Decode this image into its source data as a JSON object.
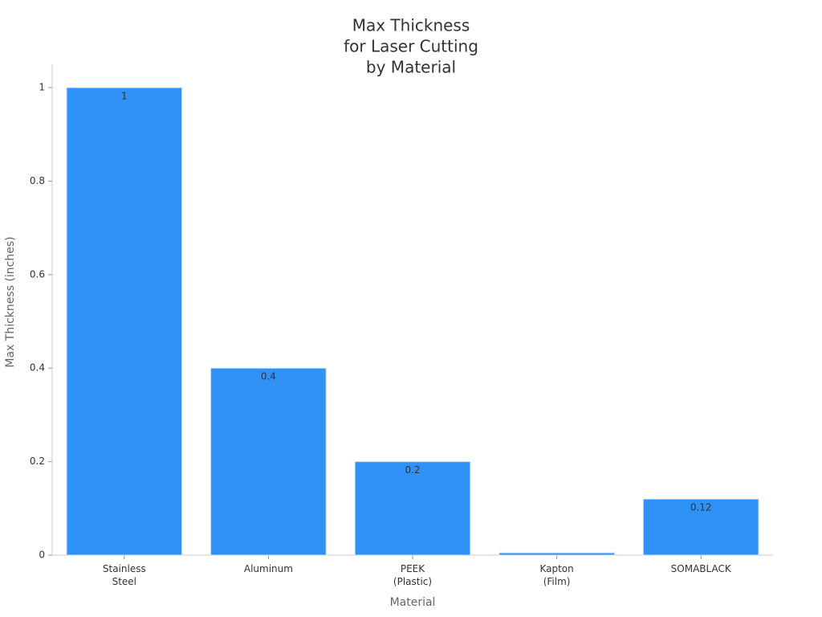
{
  "chart_data": {
    "type": "bar",
    "title": [
      "Max Thickness",
      "for Laser Cutting",
      "by Material"
    ],
    "x_label": "Material",
    "y_label": "Max Thickness (inches)",
    "categories": [
      [
        "Stainless",
        "Steel"
      ],
      [
        "Aluminum"
      ],
      [
        "PEEK",
        "(Plastic)"
      ],
      [
        "Kapton",
        "(Film)"
      ],
      [
        "SOMABLACK"
      ]
    ],
    "values": [
      1,
      0.4,
      0.2,
      0.005,
      0.12
    ],
    "value_labels": [
      "1",
      "0.4",
      "0.2",
      null,
      "0.12"
    ],
    "color": "#3092f7",
    "ylim": [
      0,
      1.05
    ],
    "yticks": [
      0,
      0.2,
      0.4,
      0.6,
      0.8,
      1
    ],
    "grid": false
  }
}
